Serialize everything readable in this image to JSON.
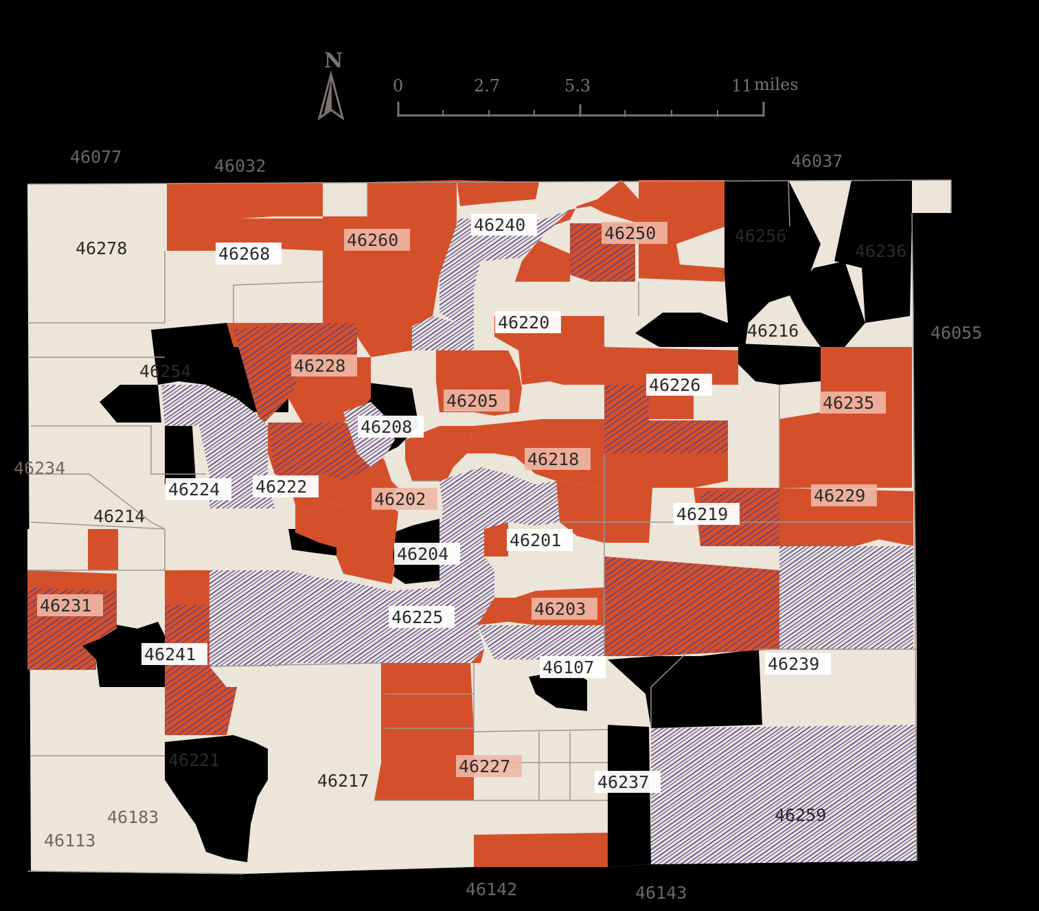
{
  "north_label": "N",
  "scale": {
    "ticks": [
      "0",
      "2.7",
      "5.3",
      "11"
    ],
    "unit": "miles"
  },
  "colors": {
    "background": "#000000",
    "land": "#ece5da",
    "highlight": "#d4502b",
    "hatch": "#4b3d8a",
    "outline": "#9c9590"
  },
  "zip_labels": [
    {
      "zip": "46278",
      "style": "plain"
    },
    {
      "zip": "46268",
      "style": "boxed"
    },
    {
      "zip": "46260",
      "style": "boxed-highlight"
    },
    {
      "zip": "46240",
      "style": "boxed"
    },
    {
      "zip": "46250",
      "style": "boxed-highlight"
    },
    {
      "zip": "46256",
      "style": "plain"
    },
    {
      "zip": "46236",
      "style": "plain"
    },
    {
      "zip": "46220",
      "style": "boxed"
    },
    {
      "zip": "46216",
      "style": "plain"
    },
    {
      "zip": "46228",
      "style": "boxed-highlight"
    },
    {
      "zip": "46254",
      "style": "plain"
    },
    {
      "zip": "46226",
      "style": "boxed"
    },
    {
      "zip": "46235",
      "style": "boxed-highlight"
    },
    {
      "zip": "46205",
      "style": "boxed-highlight"
    },
    {
      "zip": "46208",
      "style": "boxed"
    },
    {
      "zip": "46218",
      "style": "boxed-highlight"
    },
    {
      "zip": "46224",
      "style": "boxed"
    },
    {
      "zip": "46222",
      "style": "boxed"
    },
    {
      "zip": "46202",
      "style": "boxed-highlight"
    },
    {
      "zip": "46219",
      "style": "boxed"
    },
    {
      "zip": "46229",
      "style": "boxed-highlight"
    },
    {
      "zip": "46214",
      "style": "plain"
    },
    {
      "zip": "46201",
      "style": "boxed"
    },
    {
      "zip": "46204",
      "style": "boxed"
    },
    {
      "zip": "46231",
      "style": "boxed-highlight"
    },
    {
      "zip": "46203",
      "style": "boxed-highlight"
    },
    {
      "zip": "46225",
      "style": "boxed"
    },
    {
      "zip": "46241",
      "style": "boxed"
    },
    {
      "zip": "46107",
      "style": "boxed"
    },
    {
      "zip": "46239",
      "style": "boxed"
    },
    {
      "zip": "46221",
      "style": "plain"
    },
    {
      "zip": "46217",
      "style": "plain"
    },
    {
      "zip": "46227",
      "style": "boxed-highlight"
    },
    {
      "zip": "46237",
      "style": "boxed"
    },
    {
      "zip": "46259",
      "style": "plain"
    }
  ],
  "outside_labels": [
    "46077",
    "46032",
    "46037",
    "46055",
    "46234",
    "46183",
    "46113",
    "46142",
    "46143"
  ]
}
